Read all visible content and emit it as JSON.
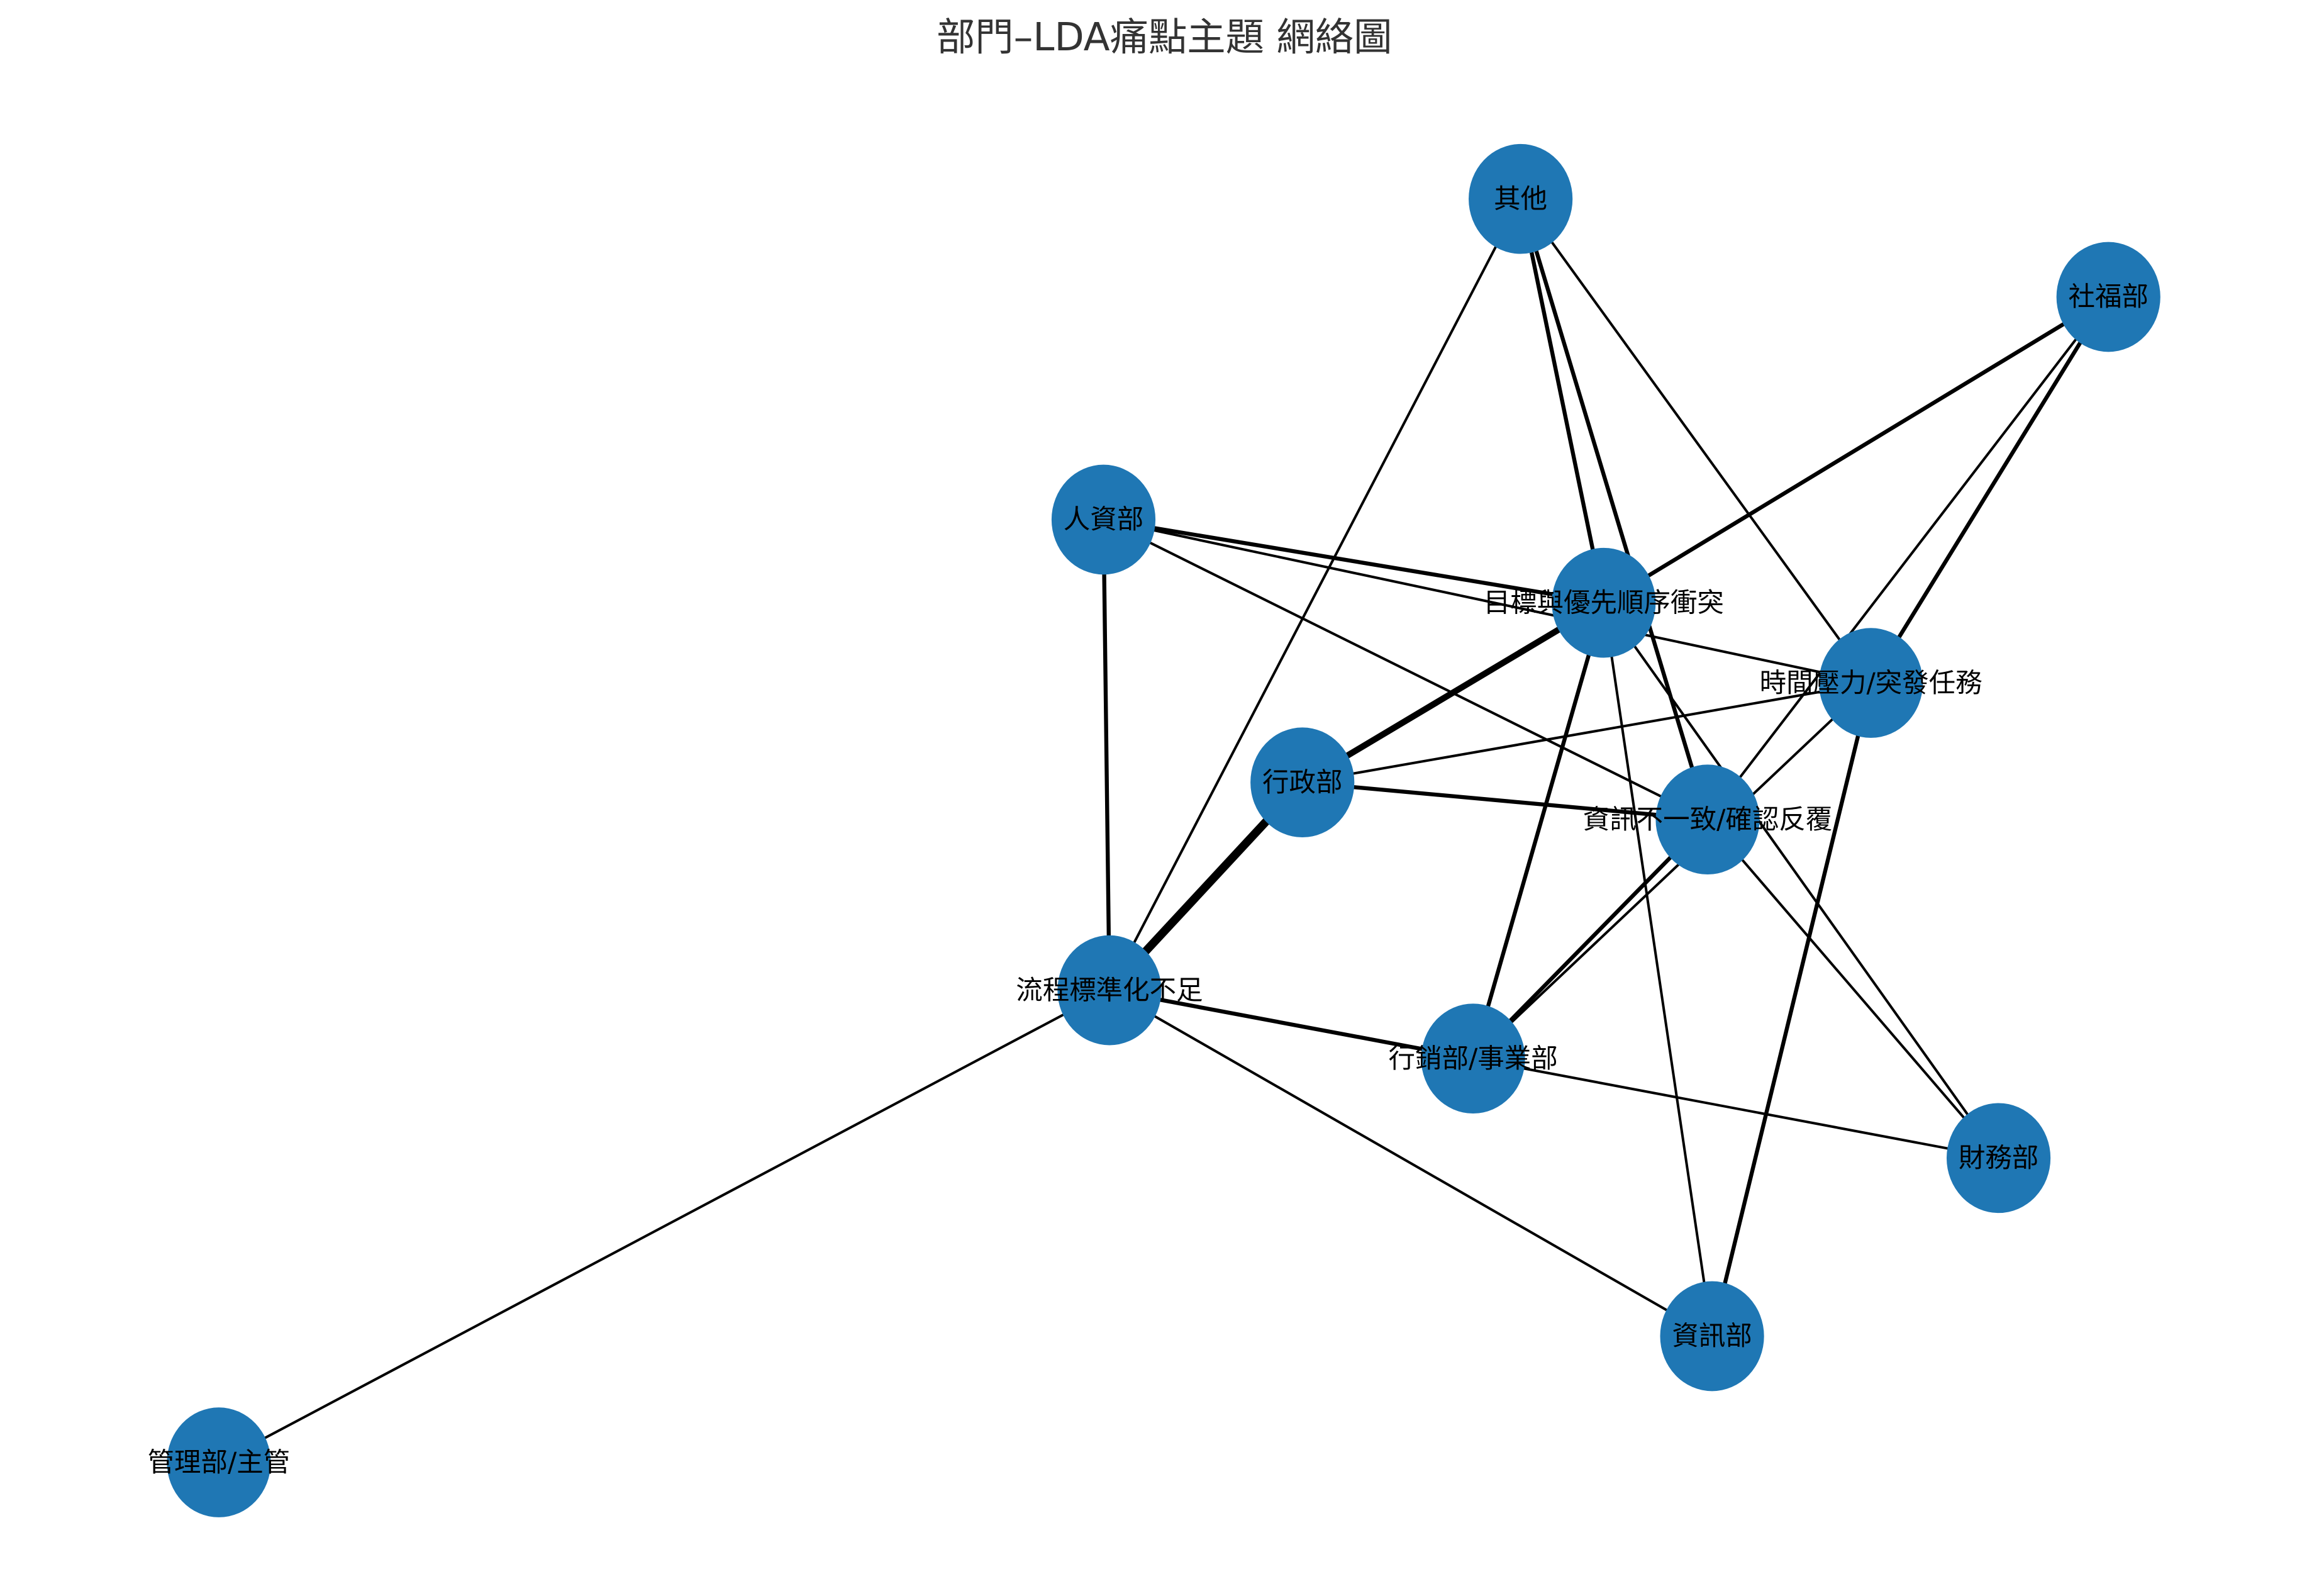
{
  "title": "部門–LDA痛點主題 網絡圖",
  "colors": {
    "node": "#1f77b4",
    "edge": "#000000",
    "label": "#000000",
    "title": "#333333"
  },
  "nodes": [
    {
      "id": "其他",
      "kind": "department"
    },
    {
      "id": "社福部",
      "kind": "department"
    },
    {
      "id": "人資部",
      "kind": "department"
    },
    {
      "id": "目標與優先順序衝突",
      "kind": "topic"
    },
    {
      "id": "時間壓力/突發任務",
      "kind": "topic"
    },
    {
      "id": "行政部",
      "kind": "department"
    },
    {
      "id": "資訊不一致/確認反覆",
      "kind": "topic"
    },
    {
      "id": "流程標準化不足",
      "kind": "topic"
    },
    {
      "id": "行銷部/事業部",
      "kind": "department"
    },
    {
      "id": "財務部",
      "kind": "department"
    },
    {
      "id": "資訊部",
      "kind": "department"
    },
    {
      "id": "管理部/主管",
      "kind": "department"
    }
  ],
  "edges": [
    {
      "source": "其他",
      "target": "流程標準化不足",
      "weight": 1
    },
    {
      "source": "其他",
      "target": "目標與優先順序衝突",
      "weight": 2
    },
    {
      "source": "其他",
      "target": "資訊不一致/確認反覆",
      "weight": 2
    },
    {
      "source": "其他",
      "target": "時間壓力/突發任務",
      "weight": 1
    },
    {
      "source": "社福部",
      "target": "目標與優先順序衝突",
      "weight": 2
    },
    {
      "source": "社福部",
      "target": "資訊不一致/確認反覆",
      "weight": 1
    },
    {
      "source": "社福部",
      "target": "時間壓力/突發任務",
      "weight": 2
    },
    {
      "source": "人資部",
      "target": "目標與優先順序衝突",
      "weight": 2
    },
    {
      "source": "人資部",
      "target": "時間壓力/突發任務",
      "weight": 1
    },
    {
      "source": "人資部",
      "target": "資訊不一致/確認反覆",
      "weight": 1
    },
    {
      "source": "人資部",
      "target": "流程標準化不足",
      "weight": 2
    },
    {
      "source": "行政部",
      "target": "目標與優先順序衝突",
      "weight": 4
    },
    {
      "source": "行政部",
      "target": "時間壓力/突發任務",
      "weight": 1
    },
    {
      "source": "行政部",
      "target": "資訊不一致/確認反覆",
      "weight": 2
    },
    {
      "source": "行政部",
      "target": "流程標準化不足",
      "weight": 5
    },
    {
      "source": "行銷部/事業部",
      "target": "目標與優先順序衝突",
      "weight": 2
    },
    {
      "source": "行銷部/事業部",
      "target": "資訊不一致/確認反覆",
      "weight": 2
    },
    {
      "source": "行銷部/事業部",
      "target": "時間壓力/突發任務",
      "weight": 1
    },
    {
      "source": "行銷部/事業部",
      "target": "流程標準化不足",
      "weight": 2
    },
    {
      "source": "財務部",
      "target": "流程標準化不足",
      "weight": 1
    },
    {
      "source": "財務部",
      "target": "目標與優先順序衝突",
      "weight": 1
    },
    {
      "source": "財務部",
      "target": "資訊不一致/確認反覆",
      "weight": 1
    },
    {
      "source": "資訊部",
      "target": "目標與優先順序衝突",
      "weight": 1
    },
    {
      "source": "資訊部",
      "target": "時間壓力/突發任務",
      "weight": 2
    },
    {
      "source": "資訊部",
      "target": "流程標準化不足",
      "weight": 1
    },
    {
      "source": "管理部/主管",
      "target": "流程標準化不足",
      "weight": 1
    }
  ]
}
